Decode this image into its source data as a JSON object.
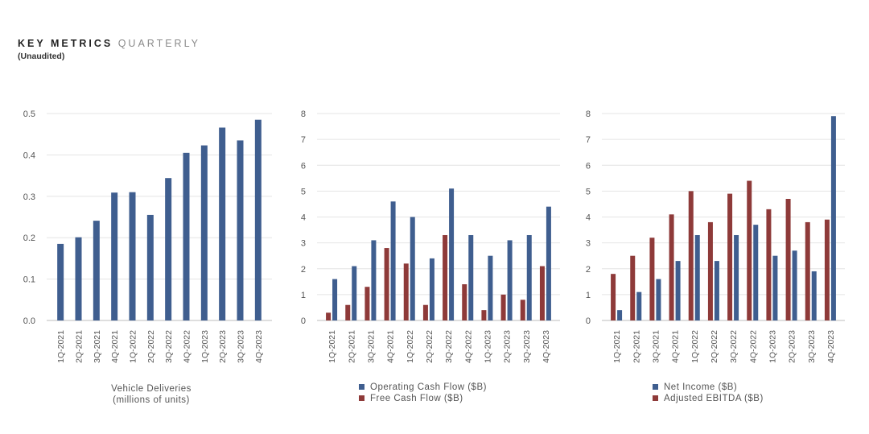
{
  "header": {
    "title_bold": "KEY METRICS",
    "title_light": "QUARTERLY",
    "subtitle": "(Unaudited)"
  },
  "colors": {
    "blue": "#3f5e8f",
    "red": "#8e3a39",
    "grid": "#e4e4e4",
    "axis": "#bdbdbd"
  },
  "chart_data": [
    {
      "type": "bar",
      "categories": [
        "1Q-2021",
        "2Q-2021",
        "3Q-2021",
        "4Q-2021",
        "1Q-2022",
        "2Q-2022",
        "3Q-2022",
        "4Q-2022",
        "1Q-2023",
        "2Q-2023",
        "3Q-2023",
        "4Q-2023"
      ],
      "series": [
        {
          "values": [
            0.185,
            0.201,
            0.241,
            0.309,
            0.31,
            0.255,
            0.344,
            0.405,
            0.423,
            0.466,
            0.435,
            0.485
          ],
          "color": "#3f5e8f"
        }
      ],
      "ylim": [
        0,
        0.5
      ],
      "yticks": [
        "0.0",
        "0.1",
        "0.2",
        "0.3",
        "0.4",
        "0.5"
      ],
      "caption": [
        "Vehicle Deliveries",
        "(millions of units)"
      ],
      "grid": true
    },
    {
      "type": "bar",
      "categories": [
        "1Q-2021",
        "2Q-2021",
        "3Q-2021",
        "4Q-2021",
        "1Q-2022",
        "2Q-2022",
        "3Q-2022",
        "4Q-2022",
        "1Q-2023",
        "2Q-2023",
        "3Q-2023",
        "4Q-2023"
      ],
      "series": [
        {
          "name": "Operating Cash Flow ($B)",
          "values": [
            1.6,
            2.1,
            3.1,
            4.6,
            4.0,
            2.4,
            5.1,
            3.3,
            2.5,
            3.1,
            3.3,
            4.4
          ],
          "color": "#3f5e8f"
        },
        {
          "name": "Free Cash Flow ($B)",
          "values": [
            0.3,
            0.6,
            1.3,
            2.8,
            2.2,
            0.6,
            3.3,
            1.4,
            0.4,
            1.0,
            0.8,
            2.1
          ],
          "color": "#8e3a39"
        }
      ],
      "ylim": [
        0,
        8
      ],
      "yticks": [
        "0",
        "1",
        "2",
        "3",
        "4",
        "5",
        "6",
        "7",
        "8"
      ],
      "legend": "bottom",
      "grid": true
    },
    {
      "type": "bar",
      "categories": [
        "1Q-2021",
        "2Q-2021",
        "3Q-2021",
        "4Q-2021",
        "1Q-2022",
        "2Q-2022",
        "3Q-2022",
        "4Q-2022",
        "1Q-2023",
        "2Q-2023",
        "3Q-2023",
        "4Q-2023"
      ],
      "series": [
        {
          "name": "Net Income ($B)",
          "values": [
            0.4,
            1.1,
            1.6,
            2.3,
            3.3,
            2.3,
            3.3,
            3.7,
            2.5,
            2.7,
            1.9,
            7.9
          ],
          "color": "#3f5e8f"
        },
        {
          "name": "Adjusted EBITDA ($B)",
          "values": [
            1.8,
            2.5,
            3.2,
            4.1,
            5.0,
            3.8,
            4.9,
            5.4,
            4.3,
            4.7,
            3.8,
            3.9
          ],
          "color": "#8e3a39"
        }
      ],
      "ylim": [
        0,
        8
      ],
      "yticks": [
        "0",
        "1",
        "2",
        "3",
        "4",
        "5",
        "6",
        "7",
        "8"
      ],
      "legend": "bottom",
      "grid": true
    }
  ]
}
